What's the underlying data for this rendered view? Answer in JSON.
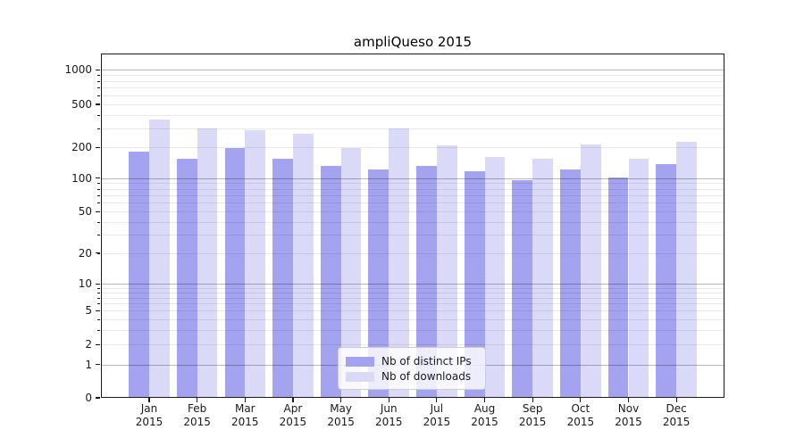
{
  "chart_data": {
    "type": "bar",
    "title": "ampliQueso 2015",
    "categories": [
      "Jan",
      "Feb",
      "Mar",
      "Apr",
      "May",
      "Jun",
      "Jul",
      "Aug",
      "Sep",
      "Oct",
      "Nov",
      "Dec"
    ],
    "year_label": "2015",
    "series": [
      {
        "name": "Nb of distinct IPs",
        "color": "#a3a3f0",
        "values": [
          183,
          155,
          196,
          156,
          131,
          122,
          131,
          116,
          96,
          122,
          102,
          136
        ]
      },
      {
        "name": "Nb of downloads",
        "color": "#dadaf8",
        "values": [
          360,
          300,
          288,
          266,
          195,
          300,
          210,
          161,
          155,
          212,
          154,
          223
        ]
      }
    ],
    "yaxis": {
      "scale": "log-with-zero",
      "ticks": [
        0,
        1,
        2,
        5,
        10,
        20,
        50,
        100,
        200,
        500,
        1000
      ],
      "ylim": [
        0,
        1400
      ]
    },
    "xlabel": "",
    "ylabel": "",
    "grid": true,
    "legend_position": "lower center"
  }
}
